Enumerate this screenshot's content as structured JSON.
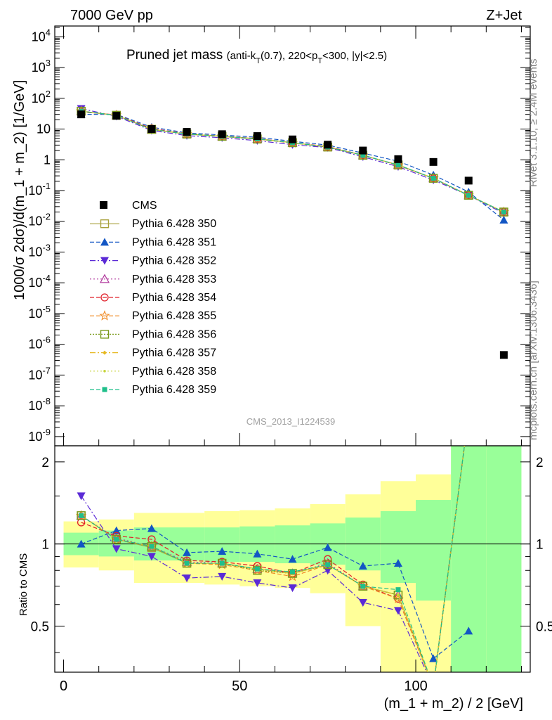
{
  "header": {
    "left": "7000 GeV pp",
    "right": "Z+Jet",
    "title_main": "Pruned jet mass",
    "title_sub": "(anti-k_T(0.7), 220<p_T<300, |y|<2.5)",
    "analysis_id": "CMS_2013_I1224539",
    "side_top": "Rivet 3.1.10, ≥ 2.4M events",
    "side_bottom": "mcplots.cern.ch [arXiv:1306.3436]"
  },
  "axes": {
    "main_ylabel": "1000/σ 2dσ)/d(m_1 + m_2) [1/GeV]",
    "ratio_ylabel": "Ratio to CMS",
    "xlabel": "(m_1 + m_2) / 2 [GeV]",
    "x_ticks": [
      "0",
      "50",
      "100"
    ],
    "main_y_ticks": [
      "10^4",
      "10^3",
      "10^2",
      "10",
      "1",
      "10^-1",
      "10^-2",
      "10^-3",
      "10^-4",
      "10^-5",
      "10^-6",
      "10^-7",
      "10^-8",
      "10^-9"
    ],
    "ratio_y_ticks": [
      "0.5",
      "1",
      "2"
    ]
  },
  "colors": {
    "band_inner": "#99ff99",
    "band_outer": "#ffff99",
    "data": "#000000"
  },
  "chart_data": {
    "type": "scatter",
    "main": {
      "x_range": [
        -2.5,
        132.5
      ],
      "y_log_range": [
        -9.3,
        4.35
      ],
      "yscale": "log",
      "data_x": [
        5,
        15,
        25,
        35,
        45,
        55,
        65,
        75,
        85,
        95,
        105,
        115,
        125
      ],
      "data_series": {
        "name": "CMS",
        "values": [
          30,
          27,
          10,
          8.1,
          6.8,
          5.9,
          4.6,
          3.1,
          2.0,
          1.05,
          0.85,
          0.21,
          4.5e-07
        ]
      },
      "series": [
        {
          "name": "Pythia 6.428 350",
          "color": "#a8a13b",
          "marker": "square-open",
          "dash": "solid",
          "values": [
            38,
            28,
            9.7,
            6.8,
            5.8,
            4.8,
            3.6,
            2.6,
            1.4,
            0.68,
            0.25,
            0.07,
            0.02
          ]
        },
        {
          "name": "Pythia 6.428 351",
          "color": "#1256c4",
          "marker": "triangle-up",
          "dash": "6,3",
          "values": [
            30,
            30,
            11.5,
            7.5,
            6.4,
            5.4,
            4.0,
            3.0,
            1.65,
            0.9,
            0.32,
            0.09,
            0.011
          ]
        },
        {
          "name": "Pythia 6.428 352",
          "color": "#5b2ad6",
          "marker": "triangle-down",
          "dash": "8,3,2,3",
          "values": [
            46,
            26,
            9.0,
            6.1,
            5.2,
            4.2,
            3.1,
            2.5,
            1.25,
            0.6,
            0.22,
            0.07,
            0.018
          ]
        },
        {
          "name": "Pythia 6.428 353",
          "color": "#b0369c",
          "marker": "triangle-open",
          "dash": "2,3",
          "values": [
            38,
            28,
            9.8,
            6.9,
            5.8,
            4.8,
            3.6,
            2.6,
            1.4,
            0.68,
            0.25,
            0.07,
            0.02
          ]
        },
        {
          "name": "Pythia 6.428 354",
          "color": "#e0202a",
          "marker": "circle-open",
          "dash": "6,3",
          "values": [
            36,
            29,
            10.4,
            7.0,
            5.9,
            4.9,
            3.6,
            2.7,
            1.42,
            0.66,
            0.25,
            0.07,
            0.02
          ]
        },
        {
          "name": "Pythia 6.428 355",
          "color": "#f08a24",
          "marker": "star-open",
          "dash": "6,3",
          "values": [
            38,
            28,
            9.8,
            6.9,
            5.7,
            4.7,
            3.5,
            2.6,
            1.4,
            0.66,
            0.25,
            0.07,
            0.02
          ]
        },
        {
          "name": "Pythia 6.428 356",
          "color": "#7a9a1a",
          "marker": "square-open",
          "dash": "2,2",
          "values": [
            38,
            28,
            9.8,
            6.9,
            5.8,
            4.7,
            3.6,
            2.6,
            1.4,
            0.68,
            0.25,
            0.07,
            0.02
          ]
        },
        {
          "name": "Pythia 6.428 357",
          "color": "#e6b820",
          "marker": "diamond",
          "dash": "8,3,2,3",
          "values": [
            38,
            28,
            9.8,
            6.9,
            5.8,
            4.8,
            3.6,
            2.6,
            1.4,
            0.68,
            0.25,
            0.07,
            0.02
          ]
        },
        {
          "name": "Pythia 6.428 358",
          "color": "#c6d43a",
          "marker": "dot",
          "dash": "2,3",
          "values": [
            38,
            28,
            9.8,
            6.9,
            5.8,
            4.8,
            3.6,
            2.6,
            1.4,
            0.68,
            0.25,
            0.07,
            0.02
          ]
        },
        {
          "name": "Pythia 6.428 359",
          "color": "#1fbf8a",
          "marker": "square-filled",
          "dash": "6,3",
          "values": [
            38,
            28,
            9.8,
            6.9,
            5.8,
            4.8,
            3.6,
            2.6,
            1.4,
            0.68,
            0.25,
            0.07,
            0.02
          ]
        }
      ]
    },
    "ratio": {
      "y_log_range": [
        -0.47,
        0.36
      ],
      "reference_line": 1,
      "bands": [
        {
          "x": [
            0,
            10
          ],
          "inner": [
            0.91,
            1.1
          ],
          "outer": [
            0.82,
            1.21
          ]
        },
        {
          "x": [
            10,
            20
          ],
          "inner": [
            0.9,
            1.12
          ],
          "outer": [
            0.8,
            1.23
          ]
        },
        {
          "x": [
            20,
            30
          ],
          "inner": [
            0.87,
            1.15
          ],
          "outer": [
            0.72,
            1.3
          ]
        },
        {
          "x": [
            30,
            40
          ],
          "inner": [
            0.87,
            1.15
          ],
          "outer": [
            0.72,
            1.3
          ]
        },
        {
          "x": [
            40,
            50
          ],
          "inner": [
            0.86,
            1.15
          ],
          "outer": [
            0.71,
            1.32
          ]
        },
        {
          "x": [
            50,
            60
          ],
          "inner": [
            0.86,
            1.16
          ],
          "outer": [
            0.7,
            1.33
          ]
        },
        {
          "x": [
            60,
            70
          ],
          "inner": [
            0.85,
            1.17
          ],
          "outer": [
            0.69,
            1.35
          ]
        },
        {
          "x": [
            70,
            80
          ],
          "inner": [
            0.84,
            1.19
          ],
          "outer": [
            0.66,
            1.4
          ]
        },
        {
          "x": [
            80,
            90
          ],
          "inner": [
            0.8,
            1.25
          ],
          "outer": [
            0.5,
            1.52
          ]
        },
        {
          "x": [
            90,
            100
          ],
          "inner": [
            0.72,
            1.32
          ],
          "outer": [
            0.3,
            1.7
          ]
        },
        {
          "x": [
            100,
            110
          ],
          "inner": [
            0.62,
            1.45
          ],
          "outer": [
            0.3,
            1.8
          ]
        },
        {
          "x": [
            110,
            120
          ],
          "inner": [
            0.3,
            3.0
          ],
          "outer": [
            0.3,
            3.0
          ]
        },
        {
          "x": [
            120,
            130
          ],
          "inner": [
            0.3,
            3.0
          ],
          "outer": [
            0.3,
            3.0
          ]
        }
      ],
      "series": [
        {
          "name": "Pythia 6.428 350",
          "values": [
            1.27,
            1.04,
            0.97,
            0.85,
            0.85,
            0.81,
            0.78,
            0.84,
            0.7,
            0.65,
            0.3,
            3.0,
            null
          ]
        },
        {
          "name": "Pythia 6.428 351",
          "values": [
            1.0,
            1.12,
            1.14,
            0.93,
            0.94,
            0.92,
            0.88,
            0.97,
            0.83,
            0.85,
            0.38,
            0.48,
            null
          ]
        },
        {
          "name": "Pythia 6.428 352",
          "values": [
            1.5,
            0.96,
            0.9,
            0.75,
            0.76,
            0.72,
            0.69,
            0.8,
            0.61,
            0.57,
            0.3,
            3.0,
            null
          ]
        },
        {
          "name": "Pythia 6.428 353",
          "values": [
            1.27,
            1.05,
            0.98,
            0.86,
            0.85,
            0.81,
            0.78,
            0.85,
            0.7,
            0.65,
            0.3,
            3.0,
            null
          ]
        },
        {
          "name": "Pythia 6.428 354",
          "values": [
            1.2,
            1.07,
            1.04,
            0.87,
            0.86,
            0.83,
            0.78,
            0.88,
            0.71,
            0.63,
            0.3,
            3.0,
            null
          ]
        },
        {
          "name": "Pythia 6.428 355",
          "values": [
            1.27,
            1.04,
            0.98,
            0.85,
            0.84,
            0.8,
            0.76,
            0.84,
            0.7,
            0.63,
            0.3,
            3.0,
            null
          ]
        },
        {
          "name": "Pythia 6.428 356",
          "values": [
            1.27,
            1.04,
            0.98,
            0.85,
            0.85,
            0.8,
            0.78,
            0.84,
            0.7,
            0.65,
            0.3,
            3.0,
            null
          ]
        },
        {
          "name": "Pythia 6.428 357",
          "values": [
            1.27,
            1.04,
            0.98,
            0.85,
            0.85,
            0.81,
            0.78,
            0.84,
            0.7,
            0.65,
            0.3,
            3.0,
            null
          ]
        },
        {
          "name": "Pythia 6.428 358",
          "values": [
            1.27,
            1.04,
            0.98,
            0.85,
            0.85,
            0.81,
            0.78,
            0.84,
            0.7,
            0.65,
            0.3,
            3.0,
            null
          ]
        },
        {
          "name": "Pythia 6.428 359",
          "values": [
            1.27,
            1.04,
            0.98,
            0.85,
            0.85,
            0.81,
            0.79,
            0.84,
            0.7,
            0.68,
            0.3,
            3.0,
            null
          ]
        }
      ]
    }
  }
}
